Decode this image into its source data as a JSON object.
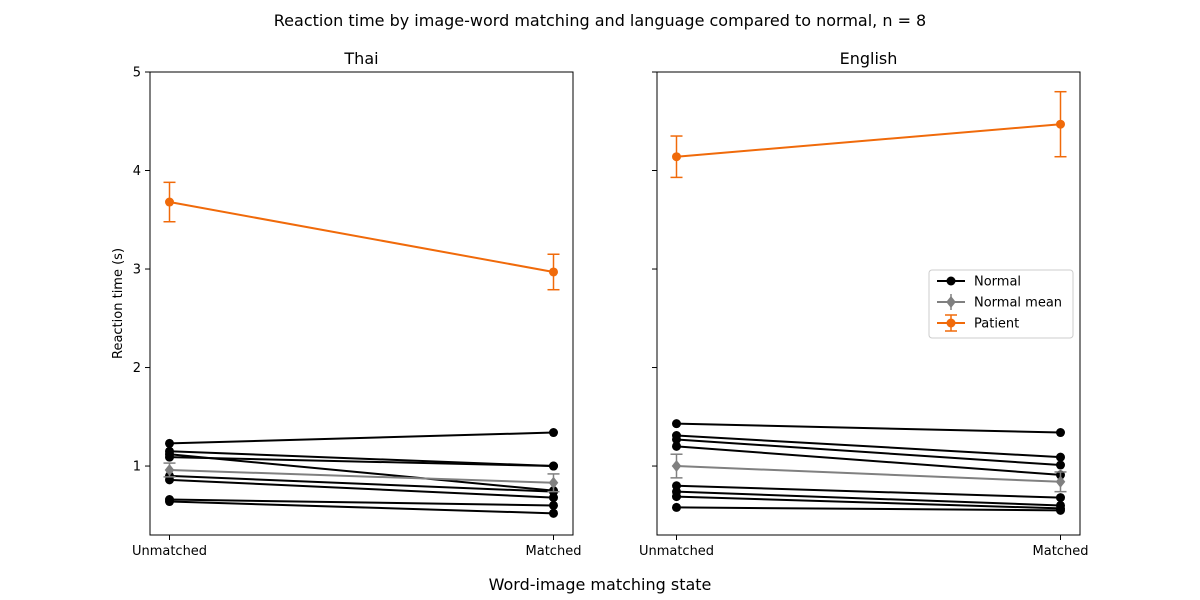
{
  "figure": {
    "suptitle": "Reaction time by image-word matching and language compared to normal, n = 8",
    "supxlabel": "Word-image matching state"
  },
  "colors": {
    "normal": "#000000",
    "normal_mean": "#808080",
    "patient": "#f06a0a"
  },
  "chart_data": [
    {
      "type": "line",
      "title": "Thai",
      "xlabel": "",
      "ylabel": "Reaction time (s)",
      "categories": [
        "Unmatched",
        "Matched"
      ],
      "ylim": [
        0.3,
        5.0
      ],
      "yticks": [
        1,
        2,
        3,
        4,
        5
      ],
      "grid": false,
      "normal_subjects": [
        [
          1.23,
          1.34
        ],
        [
          1.15,
          1.0
        ],
        [
          1.12,
          0.75
        ],
        [
          1.09,
          1.0
        ],
        [
          0.9,
          0.74
        ],
        [
          0.86,
          0.68
        ],
        [
          0.66,
          0.6
        ],
        [
          0.64,
          0.52
        ]
      ],
      "series": [
        {
          "name": "Normal mean",
          "marker": "diamond",
          "values": [
            0.96,
            0.83
          ],
          "error": [
            0.07,
            0.09
          ]
        },
        {
          "name": "Patient",
          "marker": "circle",
          "values": [
            3.68,
            2.97
          ],
          "error": [
            0.2,
            0.18
          ]
        }
      ]
    },
    {
      "type": "line",
      "title": "English",
      "xlabel": "",
      "ylabel": "",
      "categories": [
        "Unmatched",
        "Matched"
      ],
      "ylim": [
        0.3,
        5.0
      ],
      "yticks": [
        1,
        2,
        3,
        4,
        5
      ],
      "grid": false,
      "legend_position": "center-right",
      "legend": [
        "Normal",
        "Normal mean",
        "Patient"
      ],
      "normal_subjects": [
        [
          1.43,
          1.34
        ],
        [
          1.31,
          1.09
        ],
        [
          1.27,
          1.01
        ],
        [
          1.2,
          0.91
        ],
        [
          0.8,
          0.68
        ],
        [
          0.74,
          0.6
        ],
        [
          0.69,
          0.57
        ],
        [
          0.58,
          0.55
        ]
      ],
      "series": [
        {
          "name": "Normal mean",
          "marker": "diamond",
          "values": [
            1.0,
            0.84
          ],
          "error": [
            0.12,
            0.1
          ]
        },
        {
          "name": "Patient",
          "marker": "circle",
          "values": [
            4.14,
            4.47
          ],
          "error": [
            0.21,
            0.33
          ]
        }
      ]
    }
  ]
}
